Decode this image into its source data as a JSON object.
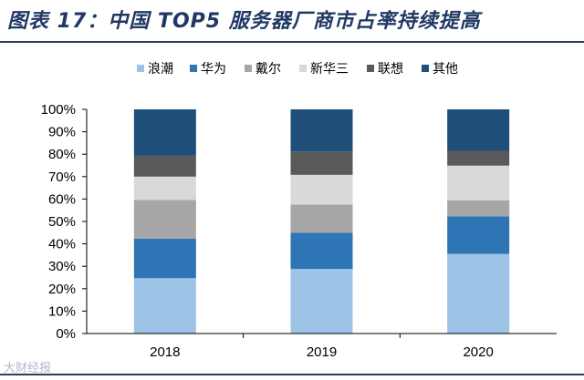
{
  "title": "图表 17：中国 TOP5 服务器厂商市占率持续提高",
  "watermark": "大财经报",
  "chart_data": {
    "type": "bar",
    "stacked": true,
    "categories": [
      "2018",
      "2019",
      "2020"
    ],
    "y_ticks": [
      "0%",
      "10%",
      "20%",
      "30%",
      "40%",
      "50%",
      "60%",
      "70%",
      "80%",
      "90%",
      "100%"
    ],
    "ylim": [
      0,
      100
    ],
    "legend_position": "top",
    "series": [
      {
        "name": "浪潮",
        "color": "#9dc3e6",
        "values": [
          24.7,
          28.8,
          35.5
        ]
      },
      {
        "name": "华为",
        "color": "#2e75b6",
        "values": [
          17.6,
          16.2,
          16.8
        ]
      },
      {
        "name": "戴尔",
        "color": "#a6a6a6",
        "values": [
          17.3,
          12.5,
          7.1
        ]
      },
      {
        "name": "新华三",
        "color": "#d9d9d9",
        "values": [
          10.4,
          13.3,
          15.5
        ]
      },
      {
        "name": "联想",
        "color": "#595959",
        "values": [
          9.3,
          10.4,
          6.6
        ]
      },
      {
        "name": "其他",
        "color": "#1f4e79",
        "values": [
          20.7,
          18.8,
          18.5
        ]
      }
    ]
  }
}
